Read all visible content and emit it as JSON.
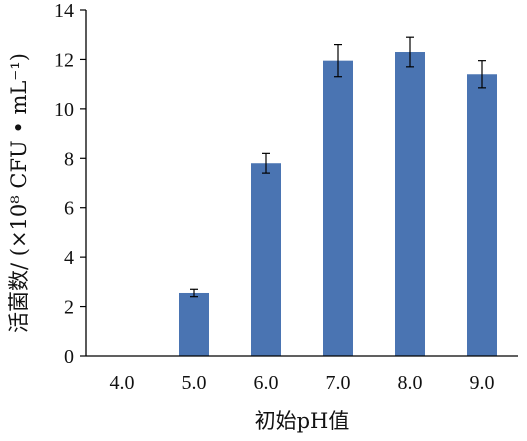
{
  "chart_data": {
    "type": "bar",
    "categories": [
      "4.0",
      "5.0",
      "6.0",
      "7.0",
      "8.0",
      "9.0"
    ],
    "values": [
      0,
      2.55,
      7.8,
      11.95,
      12.3,
      11.4
    ],
    "errors": [
      0,
      0.15,
      0.4,
      0.65,
      0.6,
      0.55
    ],
    "xlabel": "初始pH值",
    "ylabel": "活菌数/ (×10⁸ CFU • mL⁻¹)",
    "ylim": [
      0,
      14
    ],
    "yticks": [
      0,
      2,
      4,
      6,
      8,
      10,
      12,
      14
    ],
    "grid": false,
    "legend": "none",
    "bar_color": "#4a74b2",
    "error_bar_color": "#000000"
  }
}
